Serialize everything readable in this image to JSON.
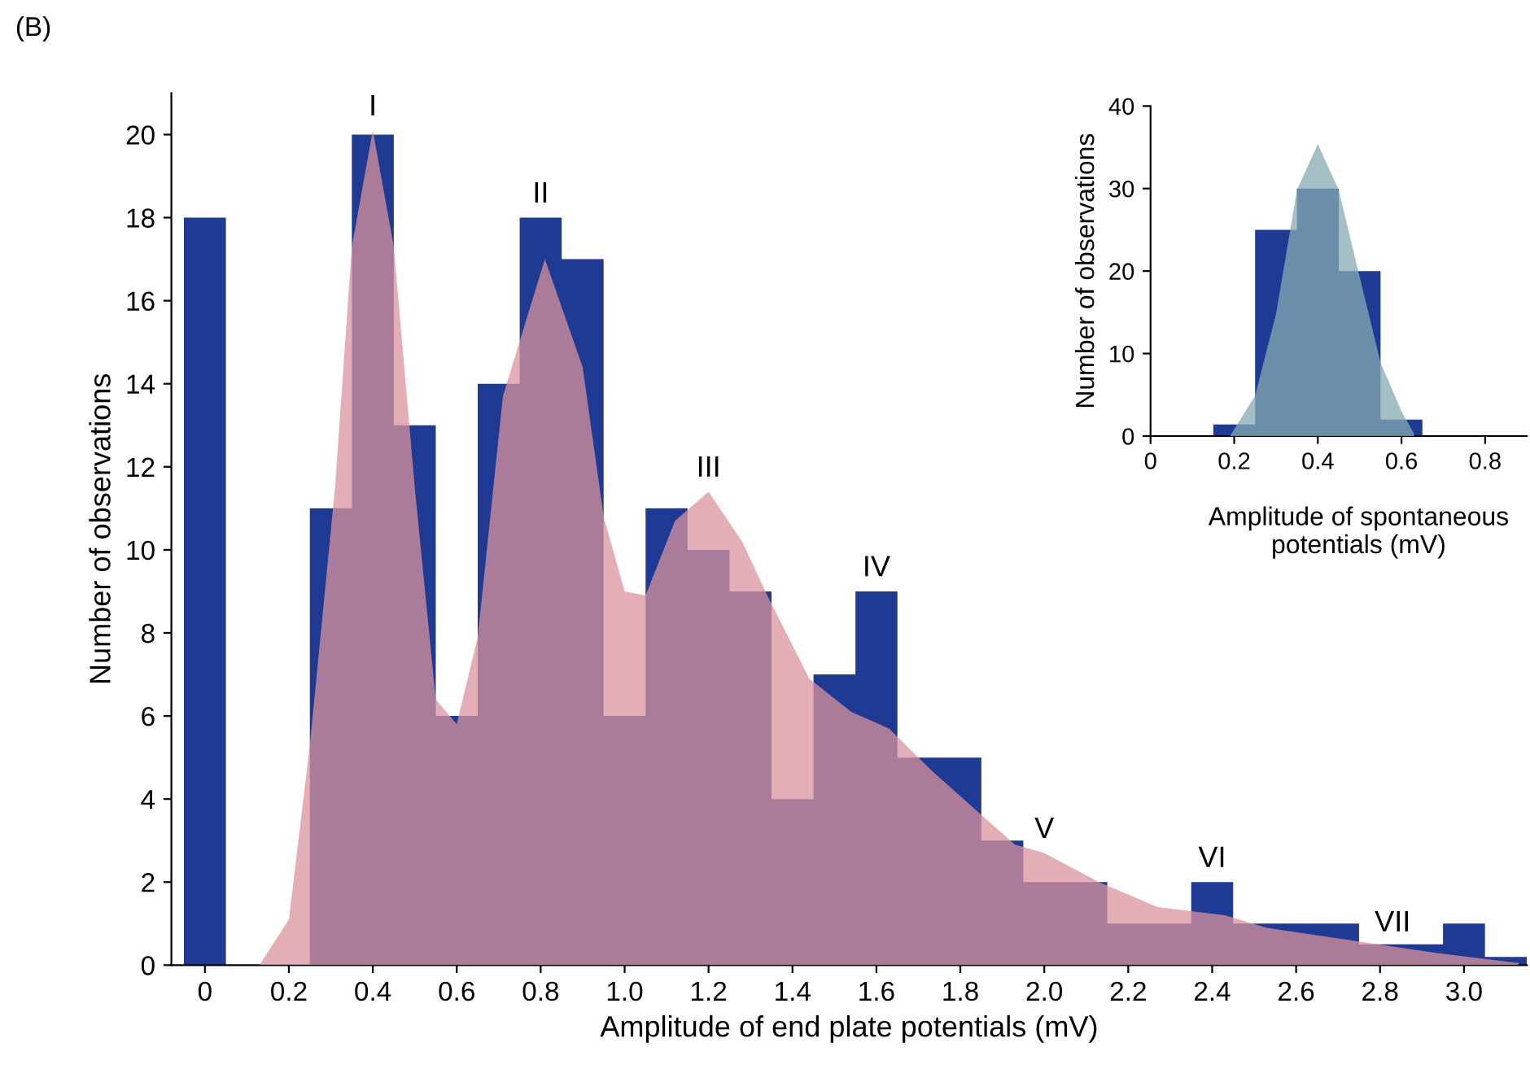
{
  "chart_data": [
    {
      "type": "histogram",
      "xlabel": "Amplitude of end plate potentials (mV)",
      "ylabel": "Number of observations",
      "xlim": [
        -0.08,
        3.15
      ],
      "ylim": [
        0,
        21
      ],
      "xticks": [
        0,
        0.2,
        0.4,
        0.6,
        0.8,
        {
          "value": 1,
          "label": "1.0"
        },
        1.2,
        1.4,
        1.6,
        1.8,
        {
          "value": 2,
          "label": "2.0"
        },
        2.2,
        2.4,
        2.6,
        2.8,
        {
          "value": 3,
          "label": "3.0"
        }
      ],
      "yticks": [
        0,
        2,
        4,
        6,
        8,
        10,
        12,
        14,
        16,
        18,
        20
      ],
      "grid": false,
      "series": [
        {
          "color": "#1f3a93",
          "bins": [
            -0.05,
            0.05,
            0.15,
            0.25,
            0.35,
            0.45,
            0.55,
            0.65,
            0.75,
            0.85,
            0.95,
            1.05,
            1.15,
            1.25,
            1.35,
            1.45,
            1.55,
            1.65,
            1.75,
            1.85,
            1.95,
            2.05,
            2.15,
            2.25,
            2.35,
            2.45,
            2.55,
            2.65,
            2.75,
            2.85,
            2.95,
            3.05,
            3.15
          ],
          "values": [
            18,
            0,
            0,
            11,
            20,
            13,
            6,
            14,
            18,
            17,
            6,
            11,
            10,
            9,
            4,
            7,
            9,
            5,
            5,
            3,
            2,
            2,
            1,
            1,
            2,
            1,
            1,
            1,
            0.5,
            0.5,
            1,
            0.2
          ]
        },
        {
          "type": "area",
          "color": "#d9939c",
          "x": [
            0.13,
            0.2,
            0.25,
            0.31,
            0.35,
            0.4,
            0.45,
            0.5,
            0.55,
            0.6,
            0.65,
            0.71,
            0.81,
            0.9,
            0.95,
            1.0,
            1.05,
            1.12,
            1.2,
            1.28,
            1.34,
            1.44,
            1.54,
            1.63,
            1.73,
            1.83,
            1.93,
            2.0,
            2.13,
            2.27,
            2.43,
            2.53,
            2.73,
            2.83,
            2.93,
            3.13
          ],
          "values": [
            0,
            1.1,
            5.3,
            11.5,
            17.3,
            20.1,
            17.3,
            11.5,
            6.4,
            5.8,
            7.9,
            13.7,
            17.0,
            14.4,
            10.8,
            9.0,
            8.9,
            10.7,
            11.4,
            10.2,
            8.9,
            6.9,
            6.1,
            5.7,
            4.7,
            3.8,
            2.9,
            2.7,
            2.0,
            1.4,
            1.2,
            0.9,
            0.6,
            0.45,
            0.3,
            0.05
          ]
        }
      ],
      "annotations": [
        "(B)",
        {
          "text": "I",
          "x": 0.4,
          "y": 20.1
        },
        {
          "text": "II",
          "x": 0.8,
          "y": 18
        },
        {
          "text": "III",
          "x": 1.2,
          "y": 11.4
        },
        {
          "text": "IV",
          "x": 1.6,
          "y": 9
        },
        {
          "text": "V",
          "x": 2.0,
          "y": 2.7
        },
        {
          "text": "VI",
          "x": 2.4,
          "y": 2
        },
        {
          "text": "VII",
          "x": 2.83,
          "y": 0.45
        }
      ]
    },
    {
      "type": "histogram",
      "xlabel": "Amplitude of spontaneous potentials (mV)",
      "ylabel": "Number of observations",
      "xlim": [
        0,
        0.9
      ],
      "ylim": [
        0,
        40
      ],
      "xticks": [
        0,
        0.2,
        0.4,
        0.6,
        0.8
      ],
      "yticks": [
        0,
        10,
        20,
        30,
        40
      ],
      "grid": false,
      "series": [
        {
          "color": "#1f3a93",
          "bins": [
            0.15,
            0.25,
            0.35,
            0.45,
            0.55,
            0.65
          ],
          "values": [
            1.4,
            25,
            30,
            20,
            2
          ]
        },
        {
          "type": "area",
          "color": "#86abb3",
          "x": [
            0.19,
            0.25,
            0.3,
            0.35,
            0.4,
            0.45,
            0.5,
            0.55,
            0.6,
            0.63
          ],
          "values": [
            0,
            4.9,
            14.8,
            29.8,
            35.4,
            29.8,
            19.3,
            8.9,
            3.0,
            0.3
          ]
        }
      ]
    }
  ]
}
